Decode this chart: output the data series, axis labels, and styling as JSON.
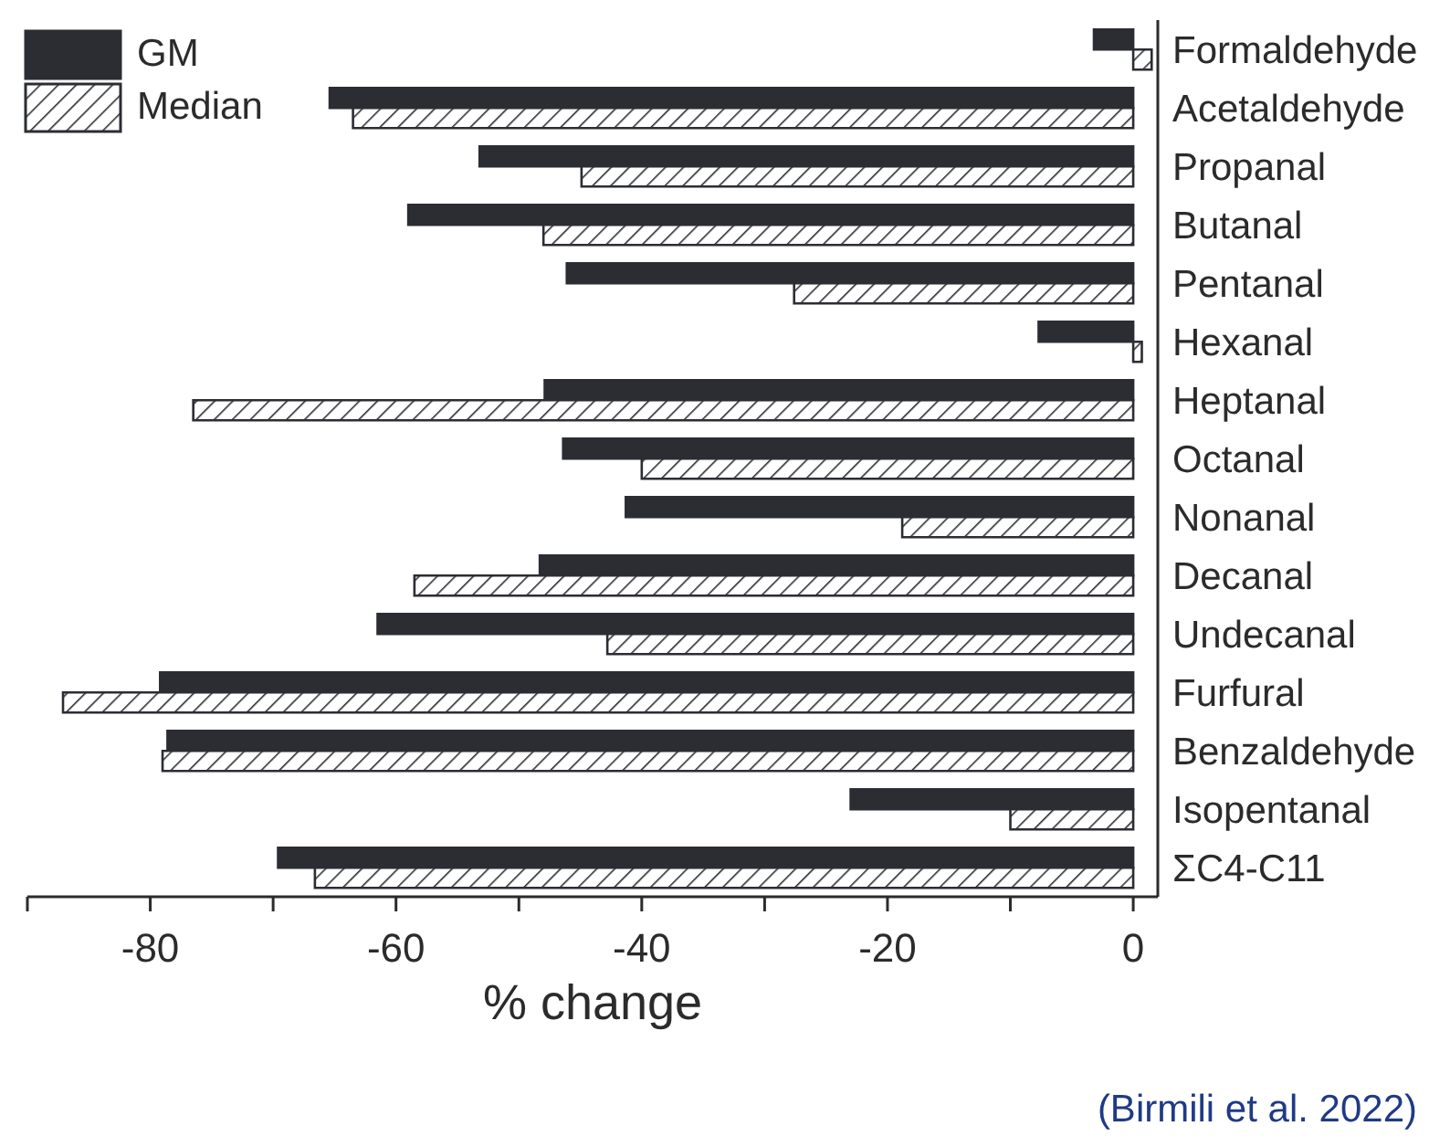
{
  "chart_data": {
    "type": "bar",
    "orientation": "horizontal",
    "categories": [
      "Formaldehyde",
      "Acetaldehyde",
      "Propanal",
      "Butanal",
      "Pentanal",
      "Hexanal",
      "Heptanal",
      "Octanal",
      "Nonanal",
      "Decanal",
      "Undecanal",
      "Furfural",
      "Benzaldehyde",
      "Isopentanal",
      "ΣC4-C11"
    ],
    "series": [
      {
        "name": "GM",
        "color": "#2b2d33",
        "values": [
          -3.2,
          -65.4,
          -53.2,
          -59.0,
          -46.1,
          -7.7,
          -47.9,
          -46.4,
          -41.3,
          -48.3,
          -61.5,
          -79.2,
          -78.6,
          -23.0,
          -69.6
        ]
      },
      {
        "name": "Median",
        "color": "#2b2d33",
        "values": [
          1.5,
          -63.5,
          -44.9,
          -48.0,
          -27.6,
          0.7,
          -76.5,
          -40.0,
          -18.8,
          -58.5,
          -42.8,
          -87.1,
          -79.0,
          -10.0,
          -66.6
        ]
      }
    ],
    "xlabel": "% change",
    "xlim": [
      -90,
      2
    ],
    "xticks": [
      {
        "value": -90,
        "label": null
      },
      -80,
      {
        "value": -70,
        "label": null
      },
      -60,
      {
        "value": -50,
        "label": null
      },
      -40,
      {
        "value": -30,
        "label": null
      },
      -20,
      {
        "value": -10,
        "label": null
      },
      0
    ],
    "legend": "top left",
    "annotations": [
      "(Birmili et al. 2022)"
    ]
  }
}
